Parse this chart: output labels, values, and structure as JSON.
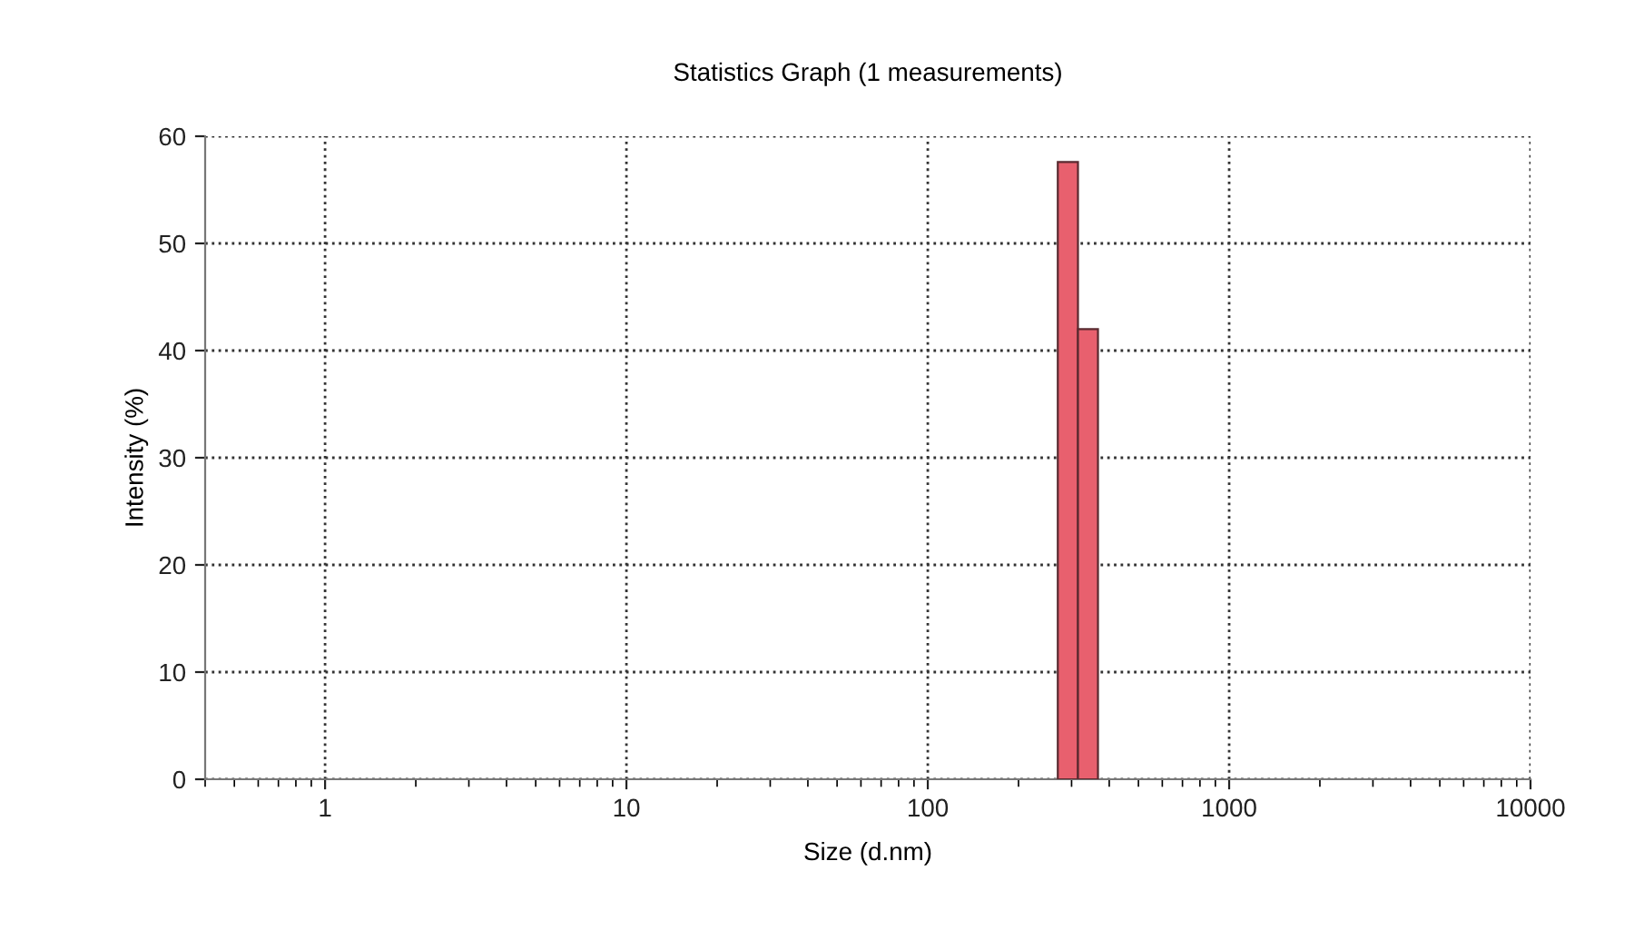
{
  "chart_data": {
    "type": "histogram",
    "title": "Statistics Graph (1 measurements)",
    "xlabel": "Size (d.nm)",
    "ylabel": "Intensity (%)",
    "log": "x",
    "bins": [
      270,
      315,
      367
    ],
    "values": [
      57.6,
      42.0
    ],
    "color": "#e8606e",
    "xlim": [
      0.4,
      10000
    ],
    "xticks": [
      1,
      10,
      100,
      1000,
      10000
    ],
    "ylim": [
      0,
      60
    ],
    "yticks": [
      0,
      10,
      20,
      30,
      40,
      50,
      60
    ],
    "grid": true
  }
}
